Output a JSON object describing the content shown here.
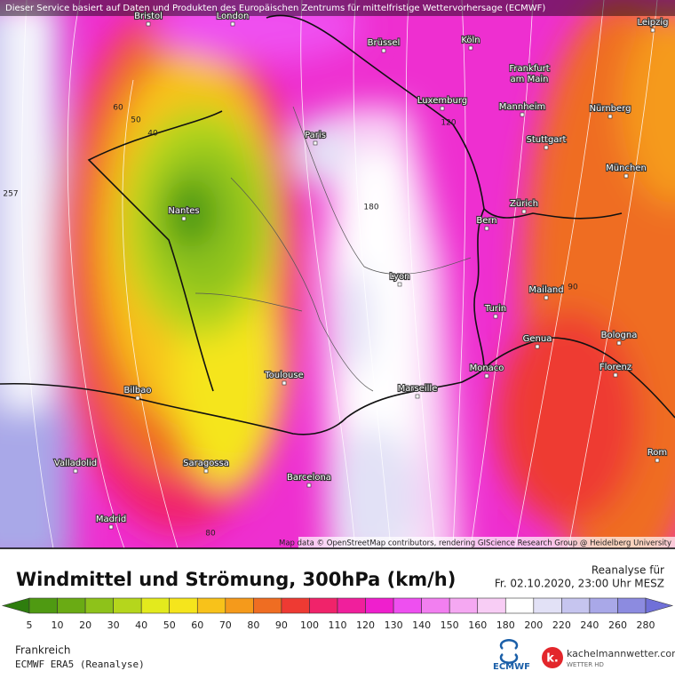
{
  "map": {
    "attribution_top": "Dieser Service basiert auf Daten und Produkten des Europäischen Zentrums für mittelfristige Wettervorhersage (ECMWF)",
    "attribution_bottom": "Map data © OpenStreetMap contributors, rendering GIScience Research Group @ Heidelberg University",
    "cities": [
      "Bristol",
      "London",
      "Brüssel",
      "Köln",
      "Leipzig",
      "Frankfurt",
      "am Main",
      "Luxemburg",
      "Mannheim",
      "Nürnberg",
      "Paris",
      "Stuttgart",
      "München",
      "Nantes",
      "Zürich",
      "Bern",
      "Lyon",
      "Mailand",
      "Turin",
      "Genua",
      "Bologna",
      "Toulouse",
      "Marseille",
      "Monaco",
      "Florenz",
      "Bilbao",
      "Saragossa",
      "Barcelona",
      "Valladolid",
      "Rom",
      "Madrid"
    ],
    "contour_labels": [
      60,
      50,
      40,
      120,
      180,
      257,
      90,
      80
    ]
  },
  "legend": {
    "title": "Windmittel und Strömung, 300hPa (km/h)",
    "analysis_label": "Reanalyse für",
    "datetime": "Fr. 02.10.2020, 23:00 Uhr MESZ",
    "ticks": [
      5,
      10,
      20,
      30,
      40,
      50,
      60,
      70,
      80,
      90,
      100,
      110,
      120,
      130,
      140,
      150,
      160,
      180,
      200,
      220,
      240,
      260,
      280
    ],
    "colors": [
      "#2e7d0e",
      "#4f9a12",
      "#6aab14",
      "#8ec21a",
      "#b5d61c",
      "#e3ea1d",
      "#f5e51c",
      "#f8c21a",
      "#f59a1b",
      "#ef6d22",
      "#ee3a33",
      "#f0236a",
      "#f01f9c",
      "#ef1fcd",
      "#ee4ff0",
      "#f27ff0",
      "#f5a8f2",
      "#f8cdf5",
      "#ffffff",
      "#e2e1f6",
      "#c6c5ef",
      "#a9a8e8",
      "#8c8be0",
      "#7070d8"
    ]
  },
  "footer": {
    "region": "Frankreich",
    "model": "ECMWF ERA5 (Reanalyse)",
    "ecmwf_logo": "ECMWF",
    "site": "kachelmannwetter.com",
    "site_sub": "WETTER HD"
  }
}
